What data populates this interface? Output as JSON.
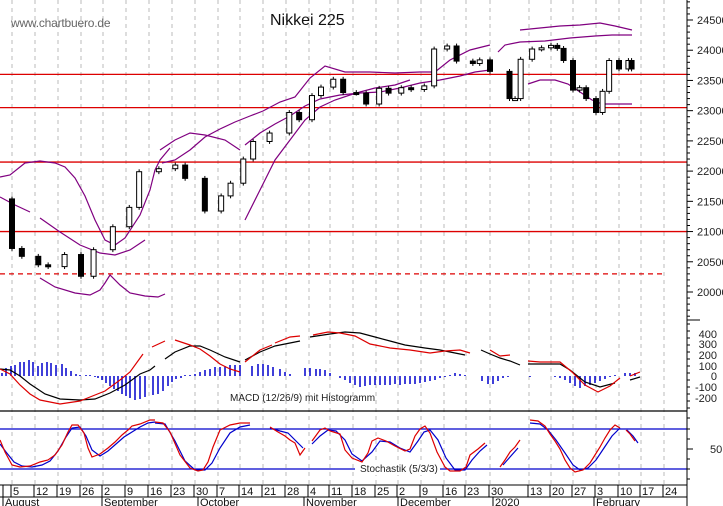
{
  "header": {
    "watermark": "www.chartbuero.de",
    "title": "Nikkei 225"
  },
  "panels": {
    "macd_label": "MACD (12/26/9) mit Histogramm",
    "stoch_label": "Stochastik (5/3/3)"
  },
  "colors": {
    "support_line": "#dd0000",
    "bollinger": "#800080",
    "macd_line": "#000000",
    "signal_line": "#dd0000",
    "histogram": "#0000cc",
    "stoch_k": "#dd0000",
    "stoch_d": "#0000cc",
    "stoch_bounds": "#0000cc",
    "grid": "#bbbbbb"
  },
  "chart_data": [
    {
      "type": "candlestick",
      "title": "Nikkei 225",
      "ylabel": "",
      "ylim": [
        19600,
        24900
      ],
      "yticks": [
        20000,
        20500,
        21000,
        21500,
        22000,
        22500,
        23000,
        23500,
        24000,
        24500
      ],
      "horizontal_lines": [
        {
          "value": 23600,
          "style": "solid",
          "color": "#dd0000"
        },
        {
          "value": 23050,
          "style": "solid",
          "color": "#dd0000"
        },
        {
          "value": 22150,
          "style": "solid",
          "color": "#dd0000"
        },
        {
          "value": 21000,
          "style": "solid",
          "color": "#dd0000"
        },
        {
          "value": 20300,
          "style": "dashed",
          "color": "#dd0000"
        }
      ],
      "overlays": [
        "Bollinger Bands"
      ],
      "approx_close_path": [
        {
          "date": "2019-08-01",
          "close": 21540
        },
        {
          "date": "2019-08-05",
          "close": 20720
        },
        {
          "date": "2019-08-08",
          "close": 20590
        },
        {
          "date": "2019-08-13",
          "close": 20450
        },
        {
          "date": "2019-08-16",
          "close": 20420
        },
        {
          "date": "2019-08-21",
          "close": 20620
        },
        {
          "date": "2019-08-26",
          "close": 20260
        },
        {
          "date": "2019-08-30",
          "close": 20700
        },
        {
          "date": "2019-09-05",
          "close": 21080
        },
        {
          "date": "2019-09-10",
          "close": 21400
        },
        {
          "date": "2019-09-13",
          "close": 21990
        },
        {
          "date": "2019-09-19",
          "close": 22040
        },
        {
          "date": "2019-09-24",
          "close": 22100
        },
        {
          "date": "2019-09-27",
          "close": 21880
        },
        {
          "date": "2019-10-03",
          "close": 21340
        },
        {
          "date": "2019-10-08",
          "close": 21590
        },
        {
          "date": "2019-10-11",
          "close": 21800
        },
        {
          "date": "2019-10-15",
          "close": 22200
        },
        {
          "date": "2019-10-18",
          "close": 22490
        },
        {
          "date": "2019-10-23",
          "close": 22630
        },
        {
          "date": "2019-10-29",
          "close": 22970
        },
        {
          "date": "2019-11-01",
          "close": 22850
        },
        {
          "date": "2019-11-05",
          "close": 23250
        },
        {
          "date": "2019-11-08",
          "close": 23390
        },
        {
          "date": "2019-11-12",
          "close": 23520
        },
        {
          "date": "2019-11-15",
          "close": 23300
        },
        {
          "date": "2019-11-19",
          "close": 23290
        },
        {
          "date": "2019-11-22",
          "close": 23110
        },
        {
          "date": "2019-11-26",
          "close": 23370
        },
        {
          "date": "2019-11-29",
          "close": 23290
        },
        {
          "date": "2019-12-03",
          "close": 23380
        },
        {
          "date": "2019-12-06",
          "close": 23350
        },
        {
          "date": "2019-12-10",
          "close": 23410
        },
        {
          "date": "2019-12-13",
          "close": 24020
        },
        {
          "date": "2019-12-17",
          "close": 24070
        },
        {
          "date": "2019-12-20",
          "close": 23820
        },
        {
          "date": "2019-12-25",
          "close": 23780
        },
        {
          "date": "2019-12-27",
          "close": 23840
        },
        {
          "date": "2019-12-30",
          "close": 23650
        },
        {
          "date": "2020-01-06",
          "close": 23200
        },
        {
          "date": "2020-01-08",
          "close": 23200
        },
        {
          "date": "2020-01-10",
          "close": 23850
        },
        {
          "date": "2020-01-14",
          "close": 24020
        },
        {
          "date": "2020-01-17",
          "close": 24040
        },
        {
          "date": "2020-01-20",
          "close": 24080
        },
        {
          "date": "2020-01-22",
          "close": 24030
        },
        {
          "date": "2020-01-24",
          "close": 23830
        },
        {
          "date": "2020-01-27",
          "close": 23340
        },
        {
          "date": "2020-01-29",
          "close": 23380
        },
        {
          "date": "2020-01-31",
          "close": 23200
        },
        {
          "date": "2020-02-03",
          "close": 22970
        },
        {
          "date": "2020-02-05",
          "close": 23320
        },
        {
          "date": "2020-02-07",
          "close": 23830
        },
        {
          "date": "2020-02-10",
          "close": 23690
        },
        {
          "date": "2020-02-13",
          "close": 23830
        },
        {
          "date": "2020-02-14",
          "close": 23690
        }
      ]
    },
    {
      "type": "line",
      "title": "MACD (12/26/9) mit Histogramm",
      "ylim": [
        -300,
        500
      ],
      "yticks": [
        400,
        300,
        200,
        100,
        0,
        -100,
        -200
      ],
      "series": [
        {
          "name": "MACD",
          "color": "#000000"
        },
        {
          "name": "Signal",
          "color": "#dd0000"
        },
        {
          "name": "Histogram",
          "color": "#0000cc",
          "type": "bar"
        }
      ],
      "approx_macd": [
        {
          "date": "2019-08-01",
          "macd": 60
        },
        {
          "date": "2019-08-12",
          "macd": -100
        },
        {
          "date": "2019-08-26",
          "macd": -190
        },
        {
          "date": "2019-09-05",
          "macd": -175
        },
        {
          "date": "2019-09-16",
          "macd": 60
        },
        {
          "date": "2019-09-25",
          "macd": 190
        },
        {
          "date": "2019-10-02",
          "macd": 240
        },
        {
          "date": "2019-10-15",
          "macd": 130
        },
        {
          "date": "2019-10-30",
          "macd": 250
        },
        {
          "date": "2019-11-12",
          "macd": 320
        },
        {
          "date": "2019-11-26",
          "macd": 310
        },
        {
          "date": "2019-12-10",
          "macd": 200
        },
        {
          "date": "2019-12-27",
          "macd": 150
        },
        {
          "date": "2020-01-06",
          "macd": 110
        },
        {
          "date": "2020-01-20",
          "macd": 110
        },
        {
          "date": "2020-02-03",
          "macd": -90
        },
        {
          "date": "2020-02-14",
          "macd": 20
        }
      ]
    },
    {
      "type": "line",
      "title": "Stochastik (5/3/3)",
      "ylim": [
        0,
        100
      ],
      "yticks": [
        50
      ],
      "horizontal_lines": [
        80,
        20
      ],
      "series": [
        {
          "name": "%K",
          "color": "#dd0000"
        },
        {
          "name": "%D",
          "color": "#0000cc"
        }
      ]
    }
  ],
  "price_axis": {
    "ticks": [
      "24500",
      "24000",
      "23500",
      "23000",
      "22500",
      "22000",
      "21500",
      "21000",
      "20500",
      "20000"
    ]
  },
  "macd_axis": {
    "ticks": [
      "400",
      "300",
      "200",
      "100",
      "0",
      "-100",
      "-200"
    ]
  },
  "stoch_axis": {
    "ticks": [
      "50"
    ]
  },
  "date_axis": {
    "weeks": [
      "5",
      "12",
      "19",
      "26",
      "2",
      "9",
      "16",
      "23",
      "30",
      "7",
      "14",
      "21",
      "28",
      "4",
      "11",
      "18",
      "25",
      "2",
      "9",
      "16",
      "23",
      "30",
      "13",
      "20",
      "27",
      "3",
      "10",
      "17",
      "24"
    ],
    "months": [
      "August",
      "September",
      "October",
      "November",
      "December",
      "2020",
      "February"
    ]
  }
}
